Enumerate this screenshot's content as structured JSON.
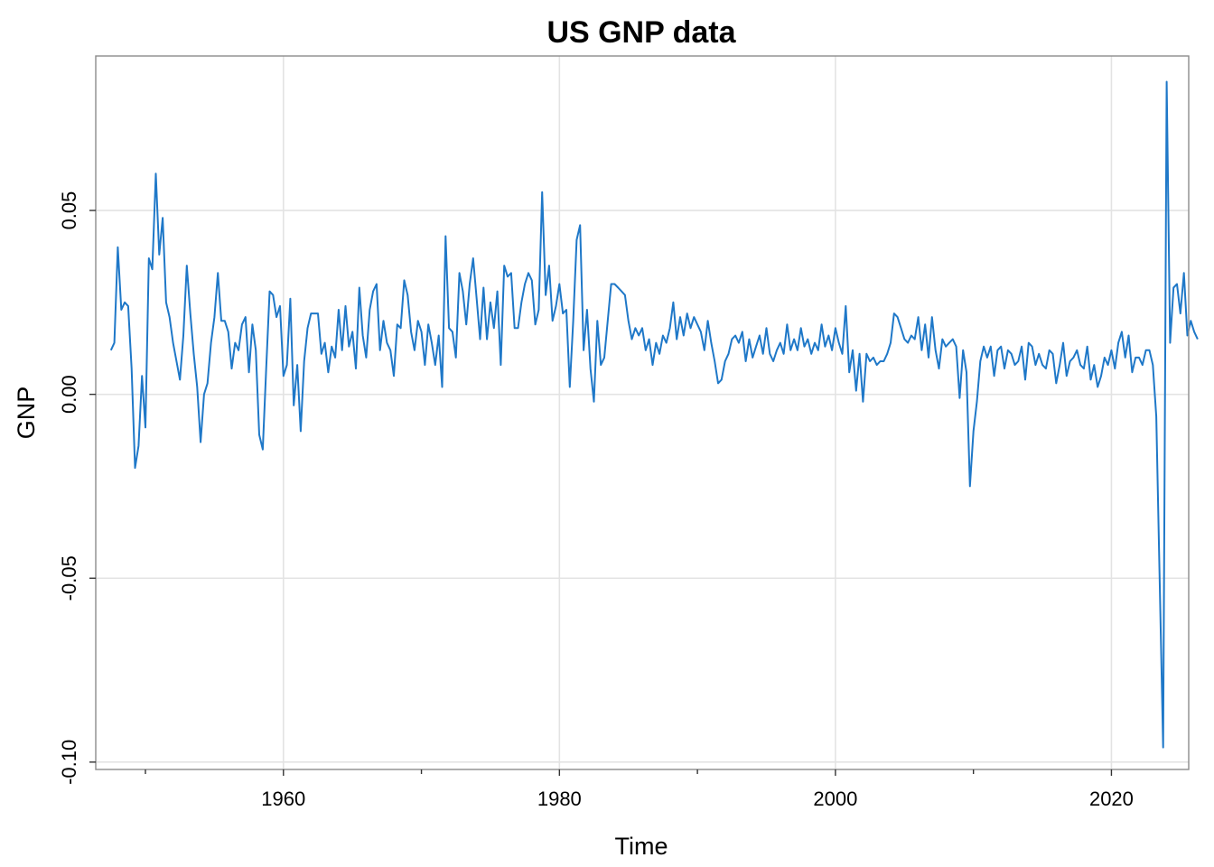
{
  "chart_data": {
    "type": "line",
    "title": "US GNP data",
    "xlabel": "Time",
    "ylabel": "GNP",
    "xlim": [
      1946.4,
      2025.6
    ],
    "ylim": [
      -0.102,
      0.092
    ],
    "x_ticks": [
      1960,
      1980,
      2000,
      2020
    ],
    "x_tick_labels": [
      "1960",
      "1980",
      "2000",
      "2020"
    ],
    "x_minor_ticks": [
      1950,
      1970,
      1990,
      2010
    ],
    "y_ticks": [
      -0.1,
      -0.05,
      0.0,
      0.05
    ],
    "y_tick_labels": [
      "-0.10",
      "-0.05",
      "0.00",
      "0.05"
    ],
    "grid": true,
    "legend": "none",
    "series": [
      {
        "color": "#1f78c8",
        "x_start": 1947.5,
        "x_step": 0.25,
        "values": [
          0.012,
          0.014,
          0.04,
          0.023,
          0.025,
          0.024,
          0.007,
          -0.02,
          -0.014,
          0.005,
          -0.009,
          0.037,
          0.034,
          0.06,
          0.038,
          0.048,
          0.025,
          0.021,
          0.014,
          0.009,
          0.004,
          0.016,
          0.035,
          0.022,
          0.011,
          0.002,
          -0.013,
          0.0,
          0.003,
          0.014,
          0.021,
          0.033,
          0.02,
          0.02,
          0.017,
          0.007,
          0.014,
          0.012,
          0.019,
          0.021,
          0.006,
          0.019,
          0.012,
          -0.011,
          -0.015,
          0.007,
          0.028,
          0.027,
          0.021,
          0.024,
          0.005,
          0.008,
          0.026,
          -0.003,
          0.008,
          -0.01,
          0.009,
          0.018,
          0.022,
          0.022,
          0.022,
          0.011,
          0.014,
          0.006,
          0.013,
          0.01,
          0.023,
          0.012,
          0.024,
          0.013,
          0.017,
          0.007,
          0.029,
          0.016,
          0.01,
          0.023,
          0.028,
          0.03,
          0.012,
          0.02,
          0.014,
          0.012,
          0.005,
          0.019,
          0.018,
          0.031,
          0.027,
          0.017,
          0.012,
          0.02,
          0.017,
          0.008,
          0.019,
          0.014,
          0.008,
          0.016,
          0.002,
          0.043,
          0.018,
          0.017,
          0.01,
          0.033,
          0.028,
          0.019,
          0.03,
          0.037,
          0.026,
          0.015,
          0.029,
          0.015,
          0.025,
          0.018,
          0.028,
          0.008,
          0.035,
          0.032,
          0.033,
          0.018,
          0.018,
          0.025,
          0.03,
          0.033,
          0.031,
          0.019,
          0.023,
          0.055,
          0.027,
          0.035,
          0.02,
          0.024,
          0.03,
          0.022,
          0.023,
          0.002,
          0.02,
          0.042,
          0.046,
          0.012,
          0.023,
          0.007,
          -0.002,
          0.02,
          0.008,
          0.01,
          0.02,
          0.03,
          0.03,
          0.029,
          0.028,
          0.027,
          0.02,
          0.015,
          0.018,
          0.016,
          0.018,
          0.012,
          0.015,
          0.008,
          0.014,
          0.011,
          0.016,
          0.014,
          0.018,
          0.025,
          0.015,
          0.021,
          0.016,
          0.022,
          0.018,
          0.021,
          0.019,
          0.017,
          0.012,
          0.02,
          0.014,
          0.009,
          0.003,
          0.004,
          0.009,
          0.011,
          0.015,
          0.016,
          0.014,
          0.017,
          0.009,
          0.015,
          0.01,
          0.013,
          0.016,
          0.011,
          0.018,
          0.011,
          0.009,
          0.012,
          0.014,
          0.011,
          0.019,
          0.012,
          0.015,
          0.012,
          0.018,
          0.013,
          0.015,
          0.011,
          0.014,
          0.012,
          0.019,
          0.013,
          0.016,
          0.012,
          0.018,
          0.014,
          0.011,
          0.024,
          0.006,
          0.012,
          0.001,
          0.011,
          -0.002,
          0.011,
          0.009,
          0.01,
          0.008,
          0.009,
          0.009,
          0.011,
          0.014,
          0.022,
          0.021,
          0.018,
          0.015,
          0.014,
          0.016,
          0.015,
          0.021,
          0.012,
          0.019,
          0.01,
          0.021,
          0.012,
          0.007,
          0.015,
          0.013,
          0.014,
          0.015,
          0.013,
          -0.001,
          0.012,
          0.006,
          -0.025,
          -0.01,
          -0.002,
          0.009,
          0.013,
          0.01,
          0.013,
          0.005,
          0.012,
          0.013,
          0.007,
          0.012,
          0.011,
          0.008,
          0.009,
          0.013,
          0.004,
          0.014,
          0.013,
          0.008,
          0.011,
          0.008,
          0.007,
          0.012,
          0.011,
          0.003,
          0.008,
          0.014,
          0.005,
          0.009,
          0.01,
          0.012,
          0.008,
          0.007,
          0.013,
          0.004,
          0.008,
          0.002,
          0.005,
          0.01,
          0.008,
          0.012,
          0.007,
          0.014,
          0.017,
          0.01,
          0.016,
          0.006,
          0.01,
          0.01,
          0.008,
          0.012,
          0.012,
          0.008,
          -0.006,
          -0.051,
          -0.096,
          0.085,
          0.014,
          0.029,
          0.03,
          0.022,
          0.033,
          0.016,
          0.02,
          0.017,
          0.015
        ]
      }
    ]
  }
}
